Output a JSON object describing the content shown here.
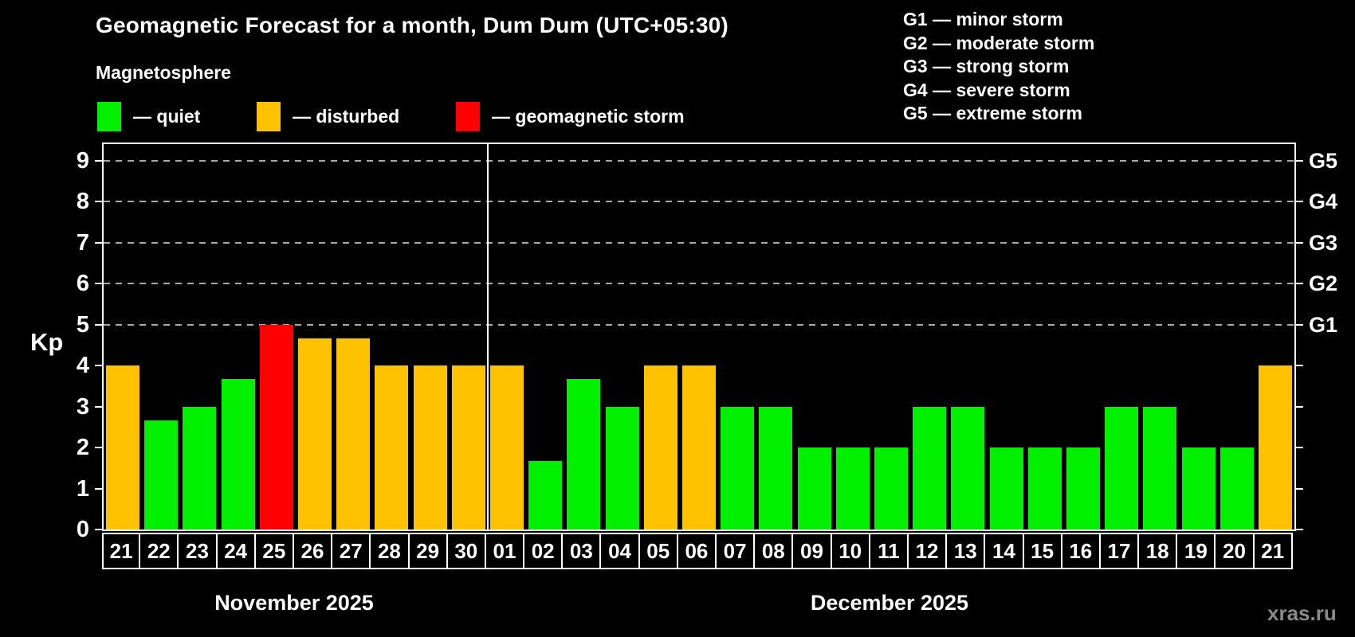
{
  "header": {
    "title": "Geomagnetic Forecast for a month, Dum Dum (UTC+05:30)",
    "subtitle": "Magnetosphere"
  },
  "legend": {
    "items": [
      {
        "name": "quiet",
        "label": "— quiet",
        "color": "#00f000"
      },
      {
        "name": "disturbed",
        "label": "— disturbed",
        "color": "#ffc200"
      },
      {
        "name": "storm",
        "label": "— geomagnetic storm",
        "color": "#ff0000"
      }
    ]
  },
  "storm_scale_legend": {
    "items": [
      "G1 — minor storm",
      "G2 — moderate storm",
      "G3 — strong storm",
      "G4 — severe storm",
      "G5 — extreme storm"
    ]
  },
  "watermark": "xras.ru",
  "chart_data": {
    "type": "bar",
    "title": "Geomagnetic Forecast for a month, Dum Dum (UTC+05:30)",
    "subtitle": "Magnetosphere",
    "ylabel": "Kp",
    "ylim": [
      0,
      9.4
    ],
    "y_ticks": [
      0,
      1,
      2,
      3,
      4,
      5,
      6,
      7,
      8,
      9
    ],
    "gridlines_at": [
      5,
      6,
      7,
      8,
      9
    ],
    "grid": "dashed horizontal lines at storm levels only",
    "legend_position": "top",
    "right_axis_labels": [
      {
        "text": "G1",
        "value": 5
      },
      {
        "text": "G2",
        "value": 6
      },
      {
        "text": "G3",
        "value": 7
      },
      {
        "text": "G4",
        "value": 8
      },
      {
        "text": "G5",
        "value": 9
      }
    ],
    "months": [
      {
        "label": "November 2025",
        "days": 10
      },
      {
        "label": "December 2025",
        "days": 21
      }
    ],
    "categories": [
      "21",
      "22",
      "23",
      "24",
      "25",
      "26",
      "27",
      "28",
      "29",
      "30",
      "01",
      "02",
      "03",
      "04",
      "05",
      "06",
      "07",
      "08",
      "09",
      "10",
      "11",
      "12",
      "13",
      "14",
      "15",
      "16",
      "17",
      "18",
      "19",
      "20",
      "21"
    ],
    "values": [
      4,
      2.67,
      3,
      3.67,
      5,
      4.67,
      4.67,
      4,
      4,
      4,
      4,
      1.67,
      3.67,
      3,
      4,
      4,
      3,
      3,
      2,
      2,
      2,
      3,
      3,
      2,
      2,
      2,
      3,
      3,
      2,
      2,
      4
    ],
    "status": [
      "disturbed",
      "quiet",
      "quiet",
      "quiet",
      "storm",
      "disturbed",
      "disturbed",
      "disturbed",
      "disturbed",
      "disturbed",
      "disturbed",
      "quiet",
      "quiet",
      "quiet",
      "disturbed",
      "disturbed",
      "quiet",
      "quiet",
      "quiet",
      "quiet",
      "quiet",
      "quiet",
      "quiet",
      "quiet",
      "quiet",
      "quiet",
      "quiet",
      "quiet",
      "quiet",
      "quiet",
      "disturbed"
    ],
    "colors": {
      "quiet": "#00f000",
      "disturbed": "#ffc200",
      "storm": "#ff0000"
    }
  }
}
